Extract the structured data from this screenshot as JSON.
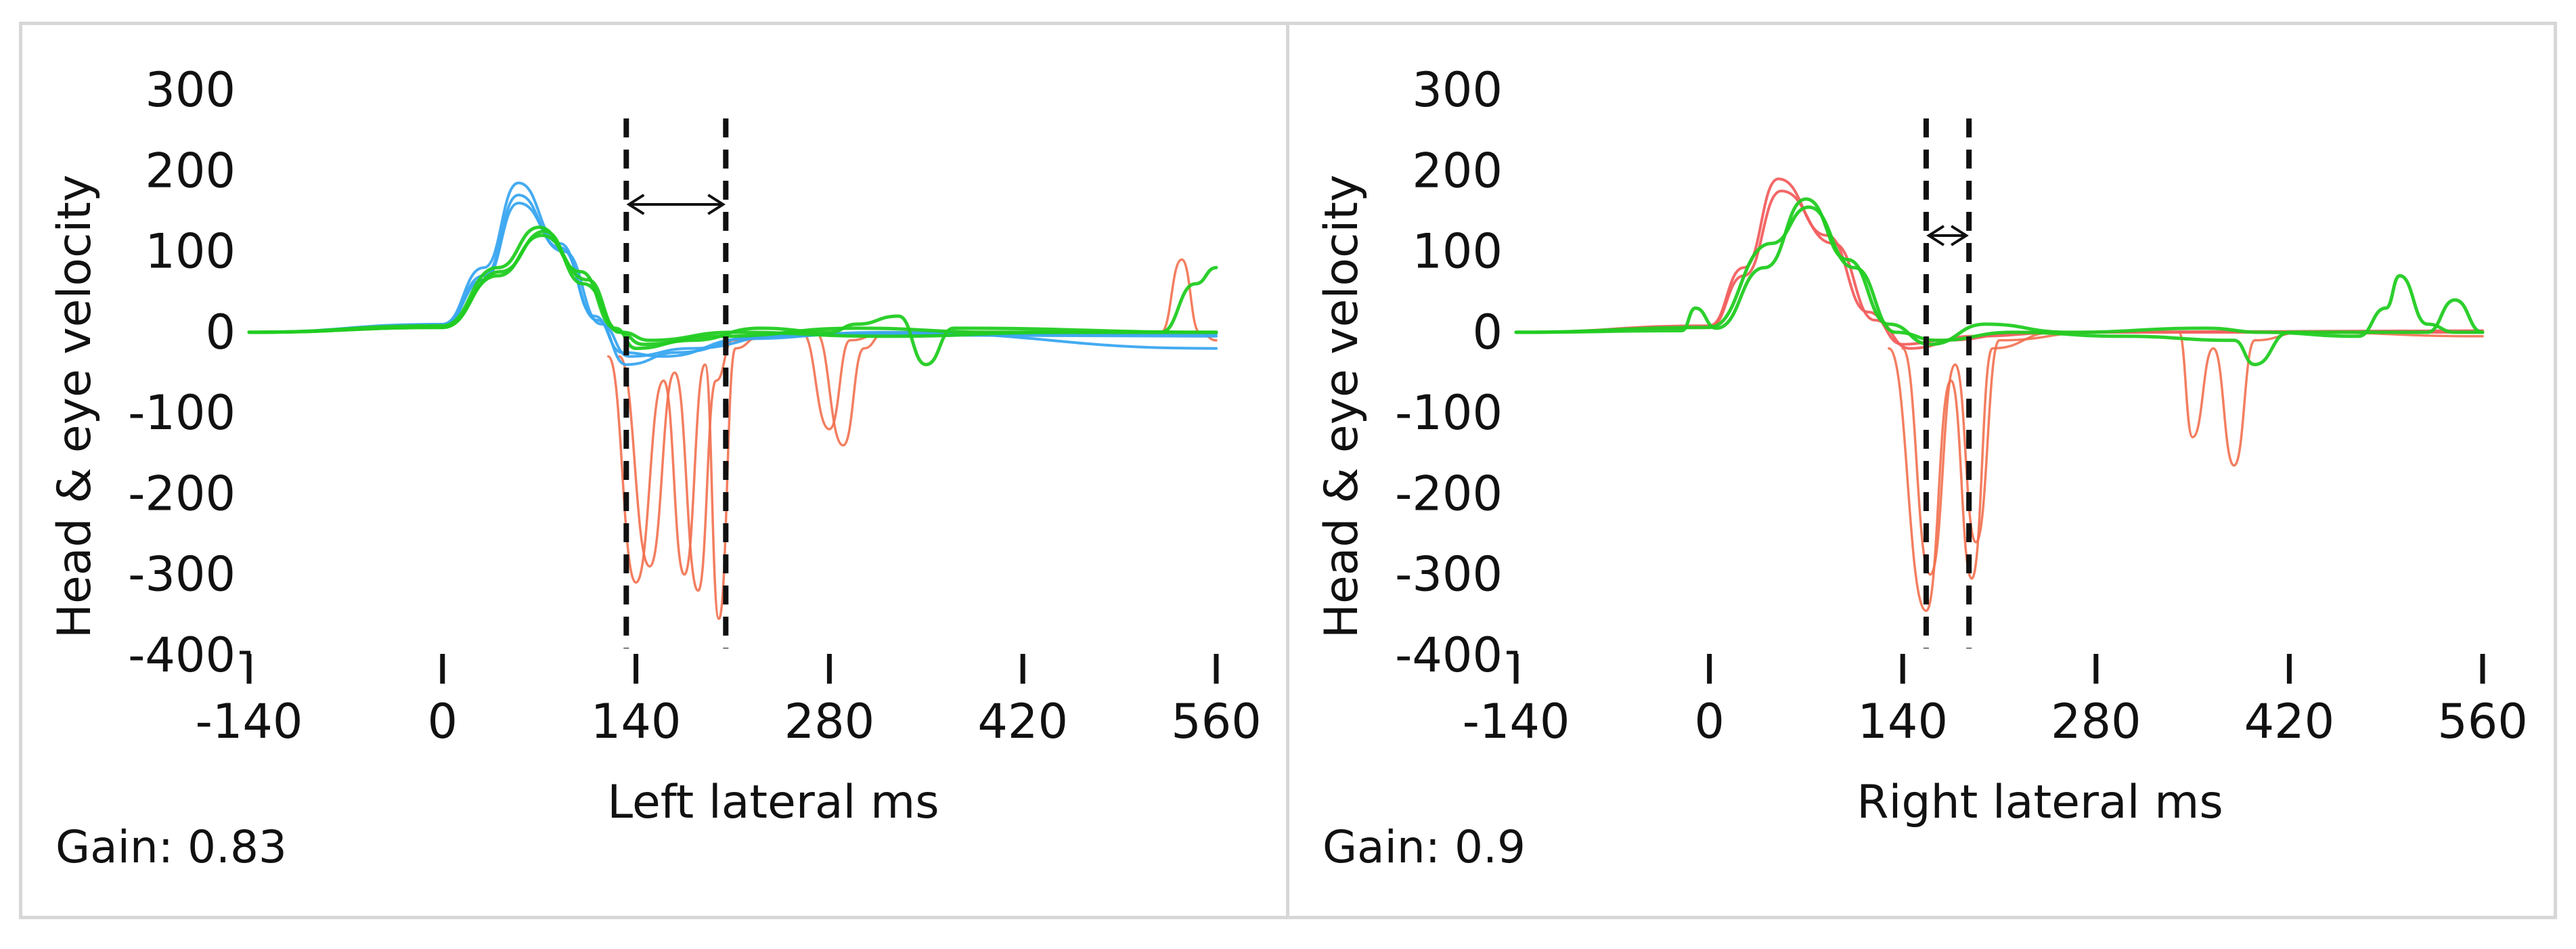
{
  "chart_data": [
    {
      "type": "line",
      "xlabel": "Left lateral ms",
      "ylabel": "Head & eye velocity",
      "xlim": [
        -140,
        560
      ],
      "ylim": [
        -400,
        300
      ],
      "x_ticks": [
        -140,
        0,
        140,
        280,
        420,
        560
      ],
      "y_ticks": [
        300,
        200,
        100,
        0,
        -100,
        -200,
        -300,
        -400
      ],
      "grid": false,
      "legend": "none",
      "annotation": {
        "type": "double-arrow interval",
        "x_start": 133,
        "x_end": 205,
        "label": ""
      },
      "gain": "Gain: 0.83",
      "colors": {
        "head": "#3aa6f0",
        "eye": "#22cc22",
        "saccade": "#f2704f"
      },
      "series": [
        {
          "role": "head",
          "points": [
            [
              -140,
              0
            ],
            [
              0,
              10
            ],
            [
              30,
              80
            ],
            [
              55,
              185
            ],
            [
              85,
              110
            ],
            [
              110,
              20
            ],
            [
              130,
              -25
            ],
            [
              160,
              -30
            ],
            [
              220,
              -8
            ],
            [
              300,
              -2
            ],
            [
              560,
              -2
            ]
          ]
        },
        {
          "role": "head",
          "points": [
            [
              -140,
              0
            ],
            [
              0,
              8
            ],
            [
              30,
              70
            ],
            [
              55,
              170
            ],
            [
              85,
              105
            ],
            [
              112,
              15
            ],
            [
              133,
              -40
            ],
            [
              170,
              -25
            ],
            [
              230,
              -5
            ],
            [
              320,
              0
            ],
            [
              560,
              -20
            ]
          ]
        },
        {
          "role": "head",
          "points": [
            [
              -140,
              0
            ],
            [
              0,
              8
            ],
            [
              30,
              65
            ],
            [
              55,
              160
            ],
            [
              88,
              100
            ],
            [
              115,
              10
            ],
            [
              135,
              -30
            ],
            [
              180,
              -20
            ],
            [
              250,
              -3
            ],
            [
              560,
              -5
            ]
          ]
        },
        {
          "role": "eye",
          "points": [
            [
              -140,
              0
            ],
            [
              0,
              8
            ],
            [
              40,
              80
            ],
            [
              70,
              130
            ],
            [
              100,
              75
            ],
            [
              125,
              5
            ],
            [
              140,
              -20
            ],
            [
              180,
              -10
            ],
            [
              230,
              5
            ],
            [
              280,
              0
            ],
            [
              300,
              10
            ],
            [
              330,
              20
            ],
            [
              350,
              -40
            ],
            [
              370,
              5
            ],
            [
              560,
              0
            ]
          ]
        },
        {
          "role": "eye",
          "points": [
            [
              -140,
              0
            ],
            [
              0,
              6
            ],
            [
              40,
              70
            ],
            [
              72,
              120
            ],
            [
              105,
              65
            ],
            [
              128,
              0
            ],
            [
              145,
              -15
            ],
            [
              200,
              -5
            ],
            [
              300,
              5
            ],
            [
              400,
              0
            ],
            [
              520,
              0
            ],
            [
              545,
              60
            ],
            [
              560,
              80
            ]
          ]
        },
        {
          "role": "eye",
          "points": [
            [
              -140,
              0
            ],
            [
              0,
              6
            ],
            [
              42,
              75
            ],
            [
              74,
              125
            ],
            [
              102,
              60
            ],
            [
              130,
              0
            ],
            [
              150,
              -10
            ],
            [
              210,
              0
            ],
            [
              320,
              -5
            ],
            [
              450,
              0
            ],
            [
              560,
              0
            ]
          ]
        },
        {
          "role": "saccade",
          "points": [
            [
              120,
              -30
            ],
            [
              140,
              -310
            ],
            [
              160,
              -60
            ],
            [
              175,
              -300
            ],
            [
              190,
              -40
            ],
            [
              200,
              -355
            ],
            [
              212,
              -20
            ],
            [
              230,
              -5
            ],
            [
              270,
              0
            ],
            [
              290,
              -140
            ],
            [
              305,
              -20
            ],
            [
              320,
              0
            ],
            [
              520,
              0
            ],
            [
              535,
              90
            ],
            [
              548,
              0
            ],
            [
              560,
              -10
            ]
          ]
        },
        {
          "role": "saccade",
          "points": [
            [
              128,
              -30
            ],
            [
              150,
              -290
            ],
            [
              168,
              -50
            ],
            [
              185,
              -320
            ],
            [
              198,
              -60
            ],
            [
              210,
              -10
            ],
            [
              260,
              0
            ],
            [
              280,
              -120
            ],
            [
              295,
              -10
            ],
            [
              320,
              0
            ],
            [
              560,
              0
            ]
          ]
        }
      ]
    },
    {
      "type": "line",
      "xlabel": "Right lateral ms",
      "ylabel": "Head & eye velocity",
      "xlim": [
        -140,
        560
      ],
      "ylim": [
        -400,
        300
      ],
      "x_ticks": [
        -140,
        0,
        140,
        280,
        420,
        560
      ],
      "y_ticks": [
        300,
        200,
        100,
        0,
        -100,
        -200,
        -300,
        -400
      ],
      "grid": false,
      "legend": "none",
      "annotation": {
        "type": "double-arrow interval",
        "x_start": 157,
        "x_end": 188,
        "label": ""
      },
      "gain": "Gain: 0.9",
      "colors": {
        "head": "#f25f5f",
        "eye": "#22cc22",
        "saccade": "#f2704f"
      },
      "series": [
        {
          "role": "head",
          "points": [
            [
              -140,
              0
            ],
            [
              0,
              8
            ],
            [
              25,
              80
            ],
            [
              50,
              190
            ],
            [
              85,
              120
            ],
            [
              115,
              25
            ],
            [
              140,
              -15
            ],
            [
              170,
              -10
            ],
            [
              230,
              0
            ],
            [
              560,
              0
            ]
          ]
        },
        {
          "role": "head",
          "points": [
            [
              -140,
              0
            ],
            [
              0,
              6
            ],
            [
              25,
              70
            ],
            [
              52,
              175
            ],
            [
              90,
              110
            ],
            [
              120,
              15
            ],
            [
              145,
              -20
            ],
            [
              190,
              -5
            ],
            [
              260,
              0
            ],
            [
              560,
              2
            ]
          ]
        },
        {
          "role": "eye",
          "points": [
            [
              -140,
              0
            ],
            [
              -20,
              2
            ],
            [
              -10,
              30
            ],
            [
              5,
              5
            ],
            [
              40,
              80
            ],
            [
              70,
              165
            ],
            [
              100,
              90
            ],
            [
              130,
              10
            ],
            [
              160,
              -15
            ],
            [
              200,
              10
            ],
            [
              260,
              0
            ],
            [
              360,
              5
            ],
            [
              400,
              0
            ],
            [
              470,
              -5
            ],
            [
              490,
              30
            ],
            [
              500,
              70
            ],
            [
              520,
              10
            ],
            [
              540,
              0
            ],
            [
              560,
              0
            ]
          ]
        },
        {
          "role": "eye",
          "points": [
            [
              -140,
              0
            ],
            [
              0,
              6
            ],
            [
              45,
              110
            ],
            [
              72,
              155
            ],
            [
              105,
              80
            ],
            [
              135,
              0
            ],
            [
              165,
              -10
            ],
            [
              220,
              0
            ],
            [
              300,
              -5
            ],
            [
              380,
              -10
            ],
            [
              395,
              -40
            ],
            [
              420,
              0
            ],
            [
              520,
              0
            ],
            [
              540,
              40
            ],
            [
              560,
              0
            ]
          ]
        },
        {
          "role": "saccade",
          "points": [
            [
              130,
              -20
            ],
            [
              157,
              -345
            ],
            [
              175,
              -60
            ],
            [
              190,
              -305
            ],
            [
              205,
              -20
            ],
            [
              250,
              0
            ],
            [
              340,
              0
            ],
            [
              350,
              -130
            ],
            [
              365,
              -20
            ],
            [
              380,
              -165
            ],
            [
              395,
              -10
            ],
            [
              430,
              0
            ],
            [
              560,
              -5
            ]
          ]
        },
        {
          "role": "saccade",
          "points": [
            [
              140,
              -20
            ],
            [
              160,
              -300
            ],
            [
              178,
              -40
            ],
            [
              193,
              -260
            ],
            [
              210,
              -10
            ],
            [
              280,
              0
            ],
            [
              560,
              0
            ]
          ]
        }
      ]
    }
  ]
}
